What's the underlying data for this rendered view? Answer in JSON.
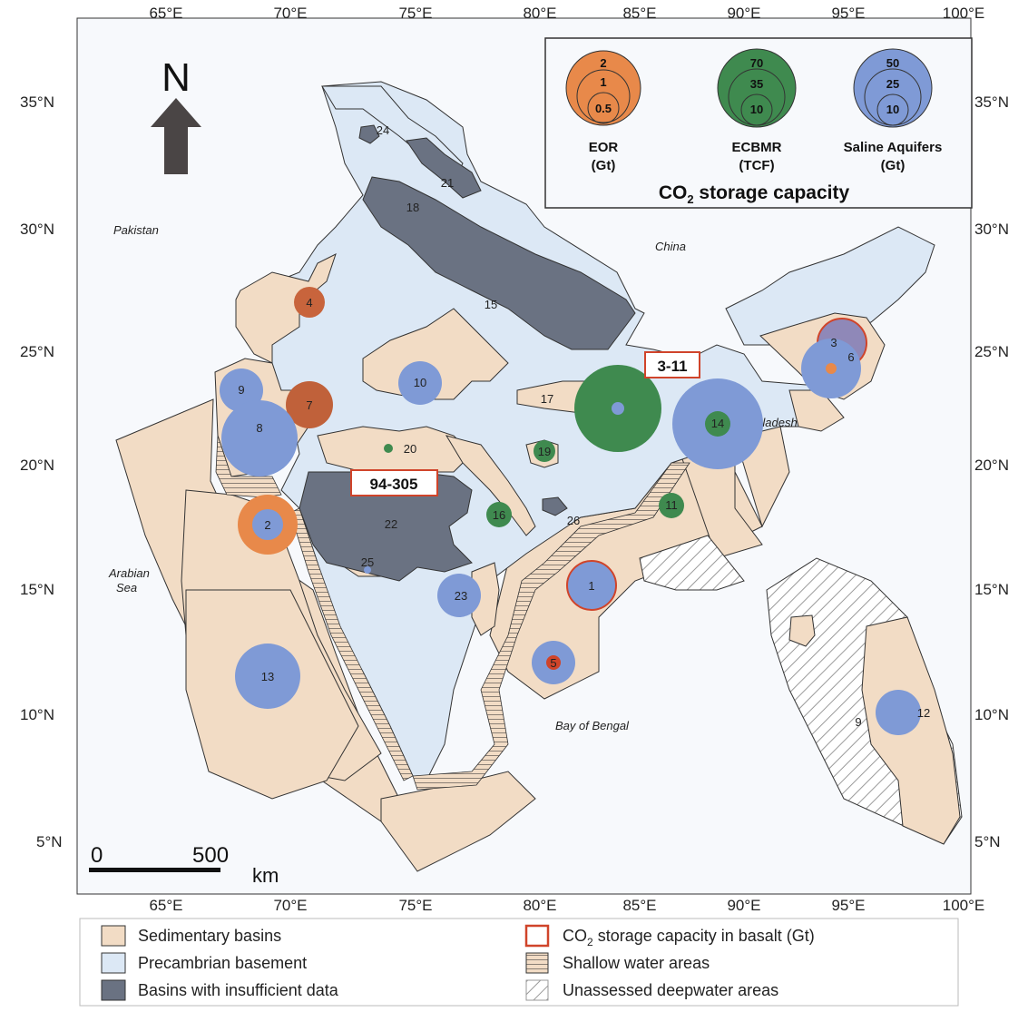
{
  "axes": {
    "lon_ticks": [
      "65°E",
      "70°E",
      "75°E",
      "80°E",
      "85°E",
      "90°E",
      "95°E",
      "100°E"
    ],
    "lat_ticks": [
      "35°N",
      "30°N",
      "25°N",
      "20°N",
      "15°N",
      "10°N",
      "5°N"
    ]
  },
  "north_arrow": {
    "label": "N"
  },
  "scale_bar": {
    "zero": "0",
    "value": "500",
    "unit": "km"
  },
  "places": {
    "pakistan": "Pakistan",
    "china": "China",
    "bangladesh": "Bangladesh",
    "arabian_sea_1": "Arabian",
    "arabian_sea_2": "Sea",
    "bay_of_bengal": "Bay of Bengal"
  },
  "capacity_legend": {
    "title_prefix": "CO",
    "title_sub": "2",
    "title_suffix": " storage capacity",
    "eor": {
      "label1": "EOR",
      "label2": "(Gt)",
      "values": [
        "2",
        "1",
        "0.5"
      ],
      "color": "#e8894a"
    },
    "ecbmr": {
      "label1": "ECBMR",
      "label2": "(TCF)",
      "values": [
        "70",
        "35",
        "10"
      ],
      "color": "#3f8a4f"
    },
    "saline": {
      "label1": "Saline Aquifers",
      "label2": "(Gt)",
      "values": [
        "50",
        "25",
        "10"
      ],
      "color": "#7f9ad6"
    }
  },
  "basalt_labels": {
    "deccan": "94-305",
    "rajmahal": "3-11"
  },
  "basin_numbers": [
    "1",
    "2",
    "3",
    "4",
    "5",
    "6",
    "7",
    "8",
    "9",
    "10",
    "11",
    "12",
    "13",
    "14",
    "15",
    "16",
    "17",
    "18",
    "19",
    "20",
    "21",
    "22",
    "23",
    "24",
    "25",
    "26",
    "9"
  ],
  "bottom_legend": {
    "sedimentary": "Sedimentary basins",
    "precambrian": "Precambrian basement",
    "insufficient": "Basins with insufficient data",
    "basalt_prefix": "CO",
    "basalt_sub": "2",
    "basalt_suffix": " storage capacity in basalt (Gt)",
    "shallow": "Shallow water areas",
    "deepwater": "Unassessed deepwater areas"
  },
  "colors": {
    "sedimentary": "#f2dcc5",
    "precambrian": "#dce8f5",
    "insufficient": "#6a7282",
    "eor": "#e8894a",
    "ecbmr": "#3f8a4f",
    "saline": "#7f9ad6",
    "basalt_border": "#d0442a"
  }
}
